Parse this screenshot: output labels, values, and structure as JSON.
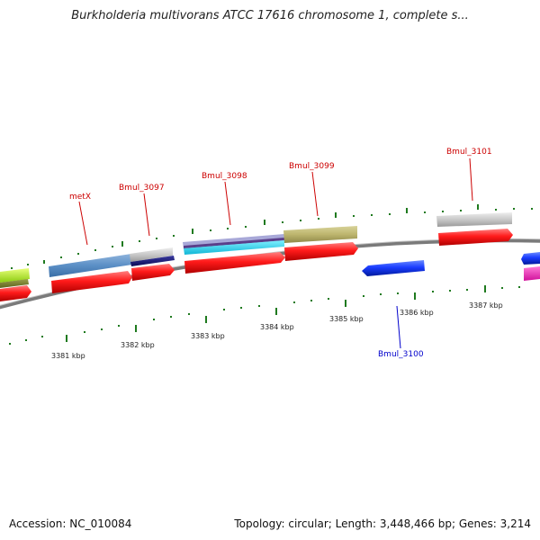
{
  "title": "Burkholderia multivorans ATCC 17616 chromosome 1, complete s...",
  "footer": {
    "accession": "Accession: NC_010084",
    "summary": "Topology: circular; Length: 3,448,466 bp; Genes: 3,214"
  },
  "colors": {
    "backbone": "#8a8a8a",
    "tick": "#1f7a1f",
    "cds": "#ff1a1a",
    "gene_label_forward": "#cc0000",
    "gene_label_reverse": "#0000cc"
  },
  "scale_labels": [
    "3381 kbp",
    "3382 kbp",
    "3383 kbp",
    "3384 kbp",
    "3385 kbp",
    "3386 kbp",
    "3387 kbp"
  ],
  "gene_labels": [
    {
      "text": "metX",
      "strand": "forward"
    },
    {
      "text": "Bmul_3097",
      "strand": "forward"
    },
    {
      "text": "Bmul_3098",
      "strand": "forward"
    },
    {
      "text": "Bmul_3099",
      "strand": "forward"
    },
    {
      "text": "Bmul_3101",
      "strand": "forward"
    },
    {
      "text": "Bmul_3100",
      "strand": "reverse"
    }
  ]
}
